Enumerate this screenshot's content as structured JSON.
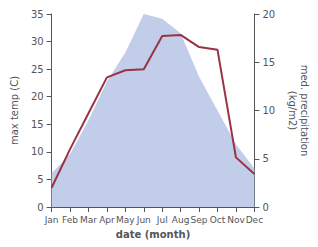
{
  "chart_data": {
    "type": "line",
    "categories": [
      "Jan",
      "Feb",
      "Mar",
      "Apr",
      "May",
      "Jun",
      "Jul",
      "Aug",
      "Sep",
      "Oct",
      "Nov",
      "Dec"
    ],
    "series": [
      {
        "type": "area",
        "color": "#bbc8e8",
        "axis": "y2",
        "values": [
          3.5,
          5.5,
          9.0,
          13.0,
          16.0,
          20.0,
          19.5,
          18.0,
          13.5,
          10.0,
          6.5,
          4.0
        ]
      },
      {
        "type": "line",
        "color": "#993344",
        "values": [
          3.5,
          10.5,
          17.0,
          23.5,
          24.8,
          25.0,
          31.0,
          31.2,
          29.0,
          28.5,
          9.0,
          6.0
        ]
      }
    ],
    "xlabel": "date (month)",
    "ylabel": "max temp (C)",
    "y2label": "med. precipitation\n(kg/m2)",
    "ylim": [
      0,
      35
    ],
    "yticks": [
      0,
      5,
      10,
      15,
      20,
      25,
      30,
      35
    ],
    "y2lim": [
      0,
      20
    ],
    "y2ticks": [
      0,
      5,
      10,
      15,
      20
    ],
    "grid": false
  }
}
